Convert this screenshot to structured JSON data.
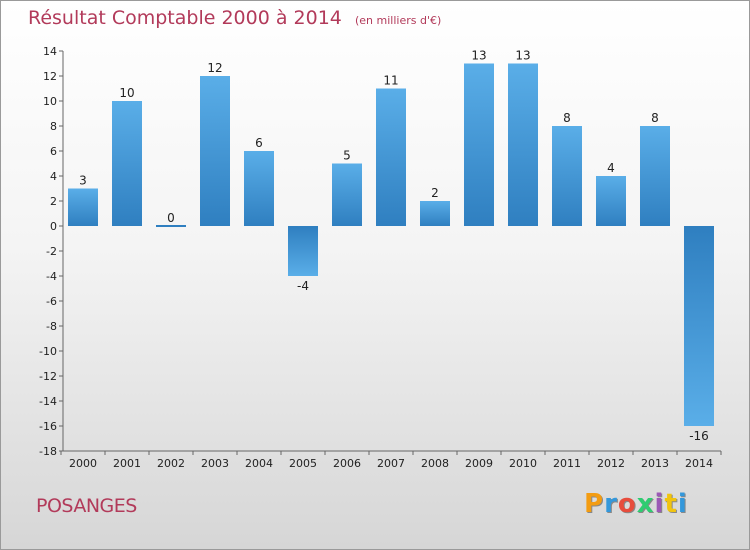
{
  "header": {
    "title": "Résultat Comptable 2000 à 2014",
    "subtitle": "(en milliers d'€)"
  },
  "footer": {
    "commune": "POSANGES",
    "logo_text": "Proxiti"
  },
  "colors": {
    "title": "#b23a5a",
    "bar_light": "#5aaee8",
    "bar_dark": "#2f7fc0",
    "logo_letters": [
      "#f39c12",
      "#3498db",
      "#e74c3c",
      "#2ecc71",
      "#9b59b6",
      "#f1c40f",
      "#3498db"
    ]
  },
  "chart_data": {
    "type": "bar",
    "title": "Résultat Comptable 2000 à 2014",
    "subtitle": "(en milliers d'€)",
    "categories": [
      "2000",
      "2001",
      "2002",
      "2003",
      "2004",
      "2005",
      "2006",
      "2007",
      "2008",
      "2009",
      "2010",
      "2011",
      "2012",
      "2013",
      "2014"
    ],
    "values": [
      3,
      10,
      0,
      12,
      6,
      -4,
      5,
      11,
      2,
      13,
      13,
      8,
      4,
      8,
      -16
    ],
    "ylim": [
      -18,
      14
    ],
    "yticks": [
      14,
      12,
      10,
      8,
      6,
      4,
      2,
      0,
      -2,
      -4,
      -6,
      -8,
      -10,
      -12,
      -14,
      -16,
      -18
    ],
    "grid": false,
    "legend": "none"
  }
}
